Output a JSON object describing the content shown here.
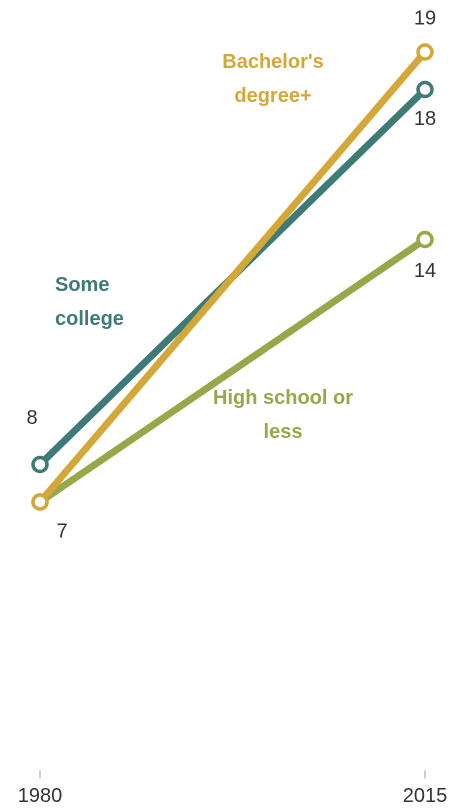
{
  "chart_data": {
    "type": "line",
    "x": [
      1980,
      2015
    ],
    "xlim": [
      1980,
      2015
    ],
    "xticks": [
      1980,
      2015
    ],
    "ylim": [
      0,
      20
    ],
    "series": [
      {
        "name": "High school or less",
        "color": "#98a74a",
        "values": [
          7,
          14
        ],
        "value_labels": [
          null,
          "14"
        ]
      },
      {
        "name": "Some college",
        "color": "#3e7b76",
        "values": [
          8,
          18
        ],
        "value_labels": [
          "8",
          "18"
        ]
      },
      {
        "name": "Bachelor's degree+",
        "color": "#d4a838",
        "values": [
          7,
          19
        ],
        "value_labels": [
          "7",
          "19"
        ]
      }
    ]
  }
}
